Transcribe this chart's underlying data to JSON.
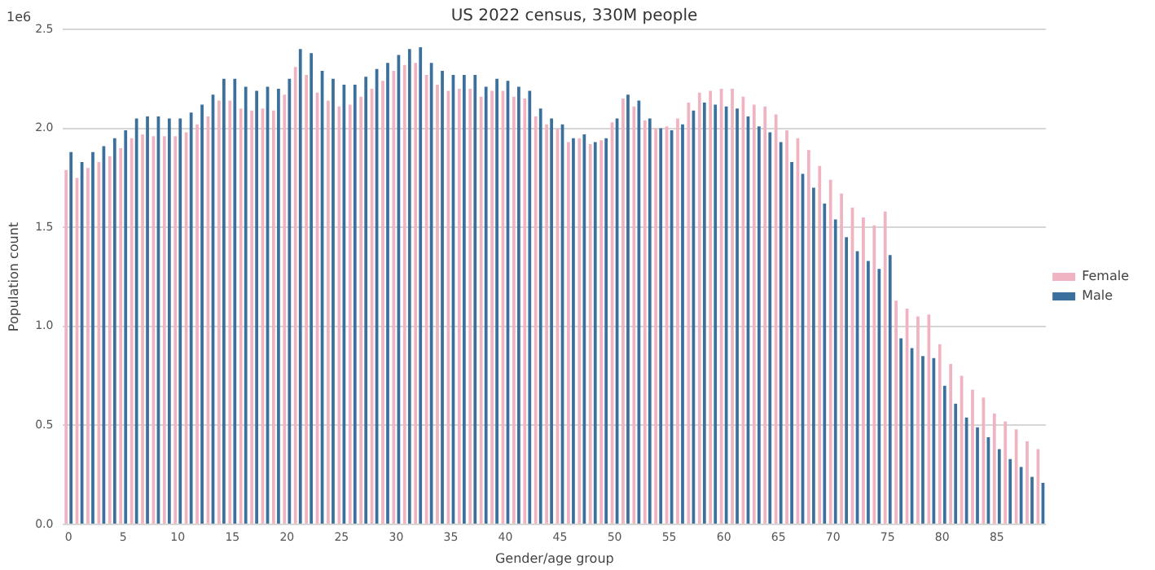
{
  "chart_data": {
    "type": "bar",
    "title": "US 2022 census, 330M people",
    "xlabel": "Gender/age group",
    "ylabel": "Population count",
    "annotations": [
      "1e6"
    ],
    "categories": [
      "0",
      null,
      null,
      null,
      null,
      "5",
      null,
      null,
      null,
      null,
      "10",
      null,
      null,
      null,
      null,
      "15",
      null,
      null,
      null,
      null,
      "20",
      null,
      null,
      null,
      null,
      "25",
      null,
      null,
      null,
      null,
      "30",
      null,
      null,
      null,
      null,
      "35",
      null,
      null,
      null,
      null,
      "40",
      null,
      null,
      null,
      null,
      "45",
      null,
      null,
      null,
      null,
      "50",
      null,
      null,
      null,
      null,
      "55",
      null,
      null,
      null,
      null,
      "60",
      null,
      null,
      null,
      null,
      "65",
      null,
      null,
      null,
      null,
      "70",
      null,
      null,
      null,
      null,
      "75",
      null,
      null,
      null,
      null,
      "80",
      null,
      null,
      null,
      null,
      "85",
      null,
      null,
      null,
      null
    ],
    "series": [
      {
        "name": "Female",
        "color": "#f0b3c1",
        "values": [
          1.79,
          1.75,
          1.8,
          1.83,
          1.86,
          1.9,
          1.95,
          1.97,
          1.96,
          1.96,
          1.96,
          1.98,
          2.02,
          2.06,
          2.14,
          2.14,
          2.1,
          2.09,
          2.1,
          2.09,
          2.17,
          2.31,
          2.27,
          2.18,
          2.14,
          2.11,
          2.12,
          2.16,
          2.2,
          2.24,
          2.29,
          2.32,
          2.33,
          2.27,
          2.22,
          2.19,
          2.2,
          2.2,
          2.16,
          2.19,
          2.19,
          2.16,
          2.15,
          2.06,
          2.02,
          2.0,
          1.93,
          1.95,
          1.92,
          1.94,
          2.03,
          2.15,
          2.11,
          2.04,
          2.0,
          2.01,
          2.05,
          2.13,
          2.18,
          2.19,
          2.2,
          2.2,
          2.16,
          2.12,
          2.11,
          2.07,
          1.99,
          1.95,
          1.89,
          1.81,
          1.74,
          1.67,
          1.6,
          1.55,
          1.51,
          1.58,
          1.13,
          1.09,
          1.05,
          1.06,
          0.91,
          0.81,
          0.75,
          0.68,
          0.64,
          0.56,
          0.52,
          0.48,
          0.42,
          0.38
        ]
      },
      {
        "name": "Male",
        "color": "#3b6f9c",
        "values": [
          1.88,
          1.83,
          1.88,
          1.91,
          1.95,
          1.99,
          2.05,
          2.06,
          2.06,
          2.05,
          2.05,
          2.08,
          2.12,
          2.17,
          2.25,
          2.25,
          2.21,
          2.19,
          2.21,
          2.2,
          2.25,
          2.4,
          2.38,
          2.29,
          2.25,
          2.22,
          2.22,
          2.26,
          2.3,
          2.33,
          2.37,
          2.4,
          2.41,
          2.33,
          2.29,
          2.27,
          2.27,
          2.27,
          2.21,
          2.25,
          2.24,
          2.21,
          2.19,
          2.1,
          2.05,
          2.02,
          1.95,
          1.97,
          1.93,
          1.95,
          2.05,
          2.17,
          2.14,
          2.05,
          2.0,
          1.99,
          2.02,
          2.09,
          2.13,
          2.12,
          2.11,
          2.1,
          2.06,
          2.01,
          1.98,
          1.93,
          1.83,
          1.77,
          1.7,
          1.62,
          1.54,
          1.45,
          1.38,
          1.33,
          1.29,
          1.36,
          0.94,
          0.89,
          0.85,
          0.84,
          0.7,
          0.61,
          0.54,
          0.49,
          0.44,
          0.38,
          0.33,
          0.29,
          0.24,
          0.21
        ]
      }
    ],
    "ylim": [
      0,
      2.5
    ],
    "yticks": [
      {
        "value": 0,
        "label": "0.0"
      },
      {
        "value": 0.5,
        "label": "0.5"
      },
      {
        "value": 1,
        "label": "1.0"
      },
      {
        "value": 1.5,
        "label": "1.5"
      },
      {
        "value": 2,
        "label": "2.0"
      },
      {
        "value": 2.5,
        "label": "2.5"
      }
    ],
    "grid": "y",
    "legend": "right"
  }
}
